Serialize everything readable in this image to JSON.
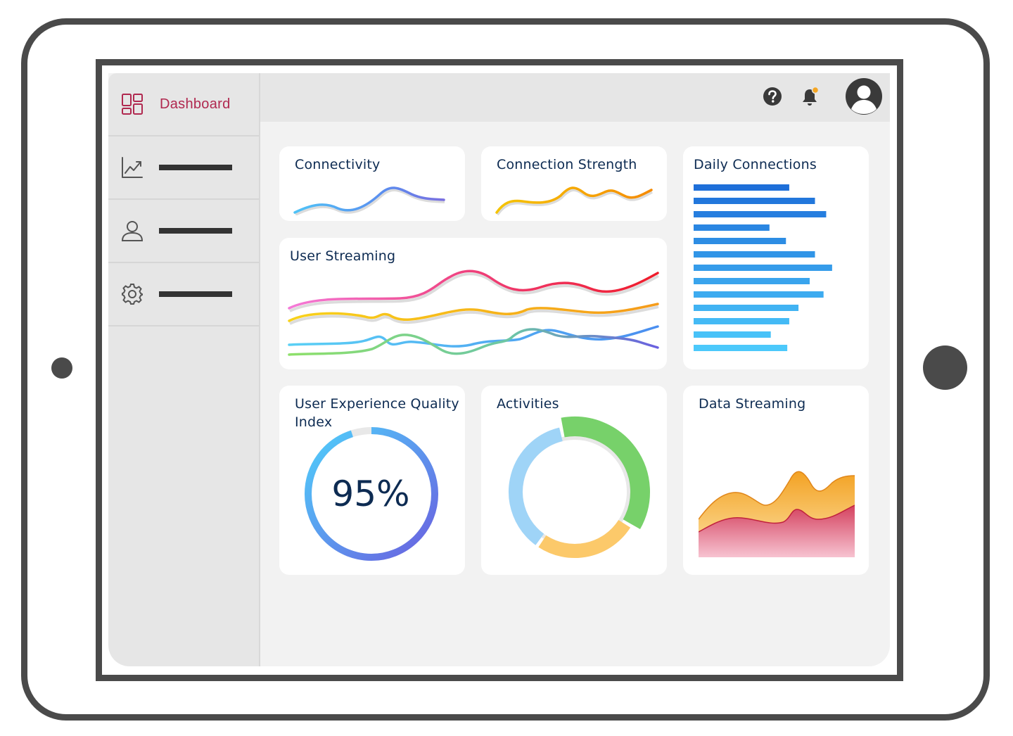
{
  "sidebar": {
    "items": [
      {
        "label": "Dashboard",
        "icon": "dashboard-icon",
        "active": true,
        "accent": "#b0284f"
      },
      {
        "label": "",
        "icon": "chart-line-icon"
      },
      {
        "label": "",
        "icon": "user-icon"
      },
      {
        "label": "",
        "icon": "gear-icon"
      }
    ]
  },
  "topbar": {
    "icons": [
      "help-icon",
      "bell-icon",
      "avatar"
    ],
    "notification_color": "#f5a623"
  },
  "cards": {
    "connectivity": {
      "title": "Connectivity"
    },
    "connection_strength": {
      "title": "Connection Strength"
    },
    "daily_connections": {
      "title": "Daily Connections"
    },
    "user_streaming": {
      "title": "User Streaming"
    },
    "uxqi": {
      "title": "User Experience Quality Index",
      "value": "95%"
    },
    "activities": {
      "title": "Activities"
    },
    "data_streaming": {
      "title": "Data Streaming"
    }
  },
  "chart_data": [
    {
      "chart": "daily_connections",
      "type": "bar",
      "orientation": "horizontal",
      "values": [
        145,
        184,
        201,
        115,
        140,
        184,
        210,
        176,
        197,
        159,
        145,
        117,
        142
      ],
      "colors": [
        "#1e6fd9",
        "#2aa8f5"
      ]
    },
    {
      "chart": "activities",
      "type": "pie",
      "segments": [
        {
          "value": 37,
          "color": "#77d16a"
        },
        {
          "value": 26,
          "color": "#fcc96a"
        },
        {
          "value": 37,
          "color": "#9fd4f7"
        }
      ]
    },
    {
      "chart": "uxqi",
      "type": "pie",
      "values": [
        95,
        5
      ],
      "colors": [
        "#6a5fe0",
        "#4fd0fb",
        "#e8e8e8"
      ]
    }
  ]
}
